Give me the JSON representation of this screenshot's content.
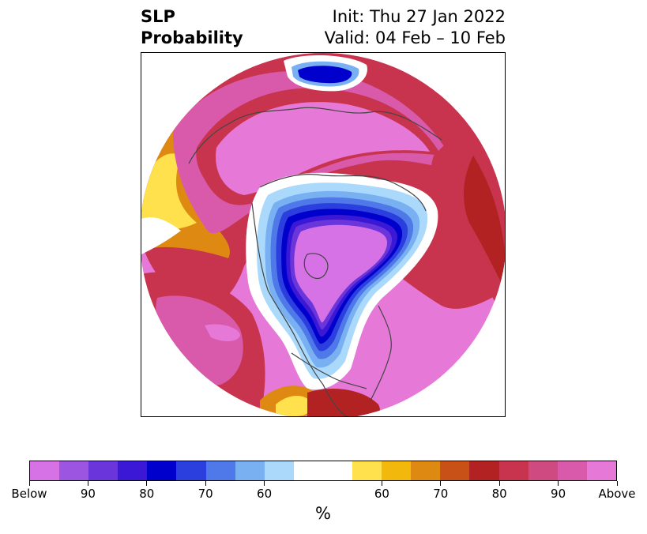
{
  "title": {
    "left_line1": "SLP",
    "left_line2": "Probability",
    "right_line1": "Init: Thu 27 Jan 2022",
    "right_line2": "Valid: 04 Feb – 10 Feb"
  },
  "colorbar": {
    "colors": [
      "#d672e6",
      "#9c55e0",
      "#6a35da",
      "#3a18d5",
      "#0000cc",
      "#2a3fdd",
      "#4f78e8",
      "#78b0f2",
      "#aad9fb",
      "#ffffff",
      "#ffffff",
      "#ffe14d",
      "#f2b90c",
      "#de8a12",
      "#c85118",
      "#b22222",
      "#c8344d",
      "#cf4a80",
      "#d95aaa",
      "#e679d8"
    ],
    "tick_labels": [
      "Below",
      "90",
      "80",
      "70",
      "60",
      "60",
      "70",
      "80",
      "90",
      "Above"
    ],
    "unit_label": "%"
  },
  "map": {
    "projection": "north-polar-stereographic",
    "field": "SLP probability",
    "colors": {
      "above_outer": "#e679d8",
      "above_90": "#d95aaa",
      "above_80": "#c8344d",
      "above_70": "#b22222",
      "above_65": "#c85118",
      "above_60": "#de8a12",
      "above_55": "#f2b90c",
      "above_50": "#ffe14d",
      "neutral": "#ffffff",
      "below_50": "#aad9fb",
      "below_55": "#78b0f2",
      "below_60": "#4f78e8",
      "below_70": "#2a3fdd",
      "below_80": "#0000cc",
      "below_85": "#3a18d5",
      "below_90": "#6a35da",
      "below_95": "#9c55e0",
      "below_core": "#d672e6",
      "coastline": "#444444"
    }
  }
}
